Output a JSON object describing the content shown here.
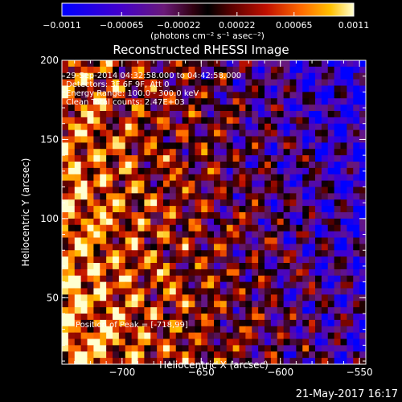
{
  "chart_data": {
    "type": "heatmap",
    "title": "Reconstructed RHESSI Image",
    "xlabel": "Heliocentric X (arcsec)",
    "ylabel": "Heliocentric Y (arcsec)",
    "xlim": [
      -738,
      -546
    ],
    "ylim": [
      8,
      200
    ],
    "x_ticks": [
      -700,
      -650,
      -600,
      -550
    ],
    "x_tick_labels": [
      "−700",
      "−650",
      "−600",
      "−550"
    ],
    "y_ticks": [
      50,
      100,
      150,
      200
    ],
    "y_tick_labels": [
      "50",
      "100",
      "150",
      "200"
    ],
    "colorbar": {
      "range": [
        -0.0011,
        0.0011
      ],
      "tick_labels": [
        "−0.0011",
        "−0.00065",
        "−0.00022",
        "0.00022",
        "0.00065",
        "0.0011"
      ],
      "units_label": "(photons cm⁻² s⁻¹ asec⁻²)"
    },
    "annotations": [
      "29-Sep-2014 04:32:58.000 to 04:42:58.000",
      "Detectors: 3F 6F 9F, Att 0",
      "Energy Range: 100.0 - 300.0 keV",
      "Clean    Total counts: 2.47E+03",
      "Position of Peak = [-718,99]"
    ],
    "peak_position": [
      -718,
      99
    ],
    "grid": false
  },
  "footer": {
    "timestamp": "21-May-2017 16:17"
  }
}
